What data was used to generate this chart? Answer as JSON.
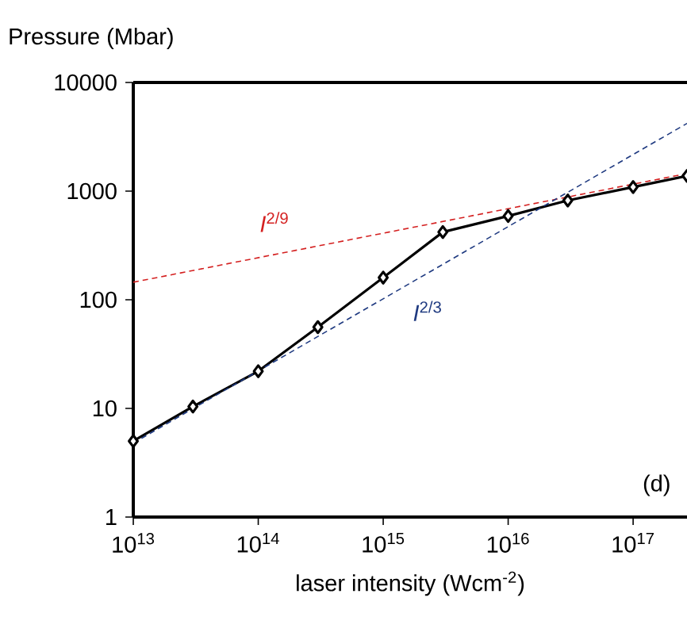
{
  "chart_data": {
    "type": "line",
    "xlabel": "laser intensity (Wcm$^{-2}$)",
    "ylabel": "Pressure (Mbar)",
    "log": "xy",
    "grid": false,
    "marker": "diamond",
    "line_style": "solid",
    "xlim": [
      10000000000000.0,
      2.7e+17
    ],
    "ylim": [
      1,
      10000
    ],
    "xticks": [
      {
        "value": 10000000000000.0,
        "label": "10$^{13}$"
      },
      {
        "value": 100000000000000.0,
        "label": "10$^{14}$"
      },
      {
        "value": 1000000000000000.0,
        "label": "10$^{15}$"
      },
      {
        "value": 1e+16,
        "label": "10$^{16}$"
      },
      {
        "value": 1e+17,
        "label": "10$^{17}$"
      }
    ],
    "yticks": [
      1,
      10,
      100,
      1000,
      10000
    ],
    "annotations": [
      "(d)"
    ],
    "series": [
      {
        "color": "#000000",
        "x": [
          10000000000000.0,
          30000000000000.0,
          100000000000000.0,
          300000000000000.0,
          1000000000000000.0,
          3000000000000000.0,
          1e+16,
          3e+16,
          1e+17,
          2.7e+17
        ],
        "values": [
          5,
          10.4,
          22,
          56,
          160,
          420,
          590,
          820,
          1090,
          1380
        ]
      },
      {
        "name": "*I*$^{2/9}$",
        "type": "line",
        "color": "#d42020",
        "marker": "none",
        "line_style": "dashed",
        "x": [
          10000000000000.0,
          2.7e+17
        ],
        "values": [
          145,
          1450
        ]
      },
      {
        "name": "*I*$^{2/3}$",
        "type": "line",
        "color": "#1f3a80",
        "marker": "none",
        "line_style": "dashed",
        "x": [
          10000000000000.0,
          2.7e+17
        ],
        "values": [
          4.8,
          4200
        ]
      }
    ]
  }
}
